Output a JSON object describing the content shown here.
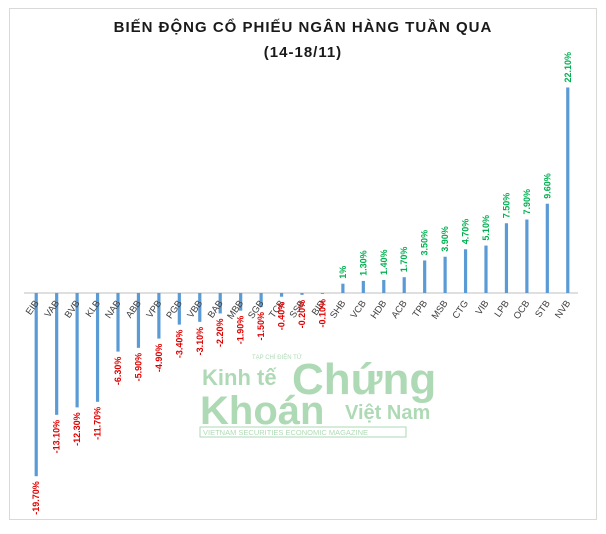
{
  "chart_data": {
    "type": "bar",
    "title": "BIẾN ĐỘNG CỔ PHIẾU NGÂN HÀNG TUẦN QUA",
    "subtitle": "(14-18/11)",
    "categories": [
      "EIB",
      "VAB",
      "BVB",
      "KLB",
      "NAB",
      "ABB",
      "VPB",
      "PGB",
      "VBB",
      "BAB",
      "MBB",
      "SGB",
      "TCB",
      "SSB",
      "BID",
      "SHB",
      "VCB",
      "HDB",
      "ACB",
      "TPB",
      "MSB",
      "CTG",
      "VIB",
      "LPB",
      "OCB",
      "STB",
      "NVB"
    ],
    "values": [
      -19.7,
      -13.1,
      -12.3,
      -11.7,
      -6.3,
      -5.9,
      -4.9,
      -3.4,
      -3.1,
      -2.2,
      -1.9,
      -1.5,
      -0.4,
      -0.2,
      -0.1,
      1,
      1.3,
      1.4,
      1.7,
      3.5,
      3.9,
      4.7,
      5.1,
      7.5,
      7.9,
      9.6,
      22.1
    ],
    "labels": [
      "-19.70%",
      "-13.10%",
      "-12.30%",
      "-11.70%",
      "-6.30%",
      "-5.90%",
      "-4.90%",
      "-3.40%",
      "-3.10%",
      "-2.20%",
      "-1.90%",
      "-1.50%",
      "-0.40%",
      "-0.20%",
      "-0.10%",
      "1%",
      "1.30%",
      "1.40%",
      "1.70%",
      "3.50%",
      "3.90%",
      "4.70%",
      "5.10%",
      "7.50%",
      "7.90%",
      "9.60%",
      "22.10%"
    ],
    "ylim": [
      -20.5,
      23
    ],
    "xlabel": "",
    "ylabel": "",
    "grid": false,
    "colors": {
      "bar": "#5b9bd5",
      "negative_label": "#e00000",
      "positive_label": "#00b050",
      "axis": "#bfbfbf",
      "category_text": "#404040"
    }
  },
  "watermark": {
    "small": "TẠP CHÍ ĐIỆN TỬ",
    "line1a": "Kinh tế",
    "line1b": "Chứng",
    "line2a": "Khoán",
    "line2b": "Việt Nam",
    "tagline": "VIETNAM SECURITIES ECONOMIC MAGAZINE",
    "color": "#2e9e3e"
  }
}
